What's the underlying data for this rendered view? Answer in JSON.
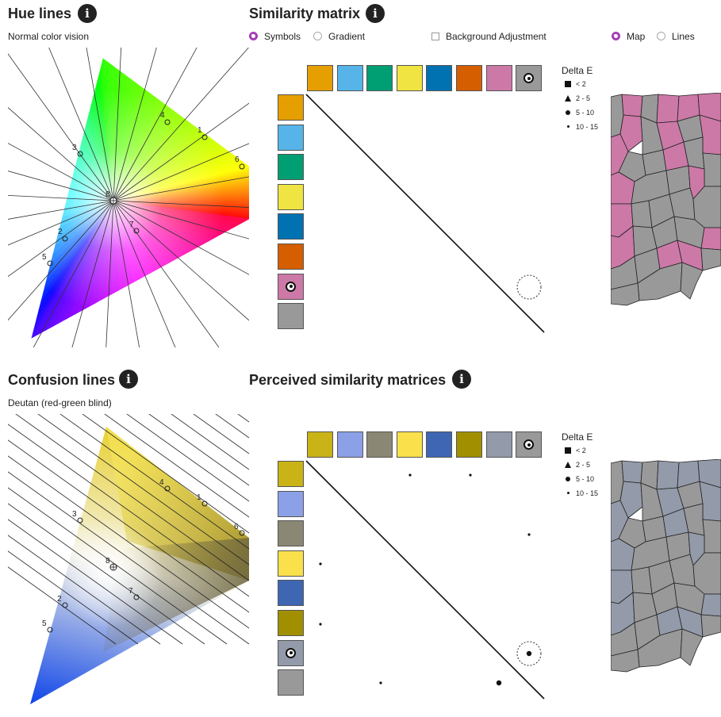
{
  "hue_panel": {
    "title": "Hue lines",
    "subtitle": "Normal color vision",
    "point_labels": [
      "1",
      "2",
      "3",
      "4",
      "5",
      "6",
      "7",
      "8"
    ]
  },
  "confusion_panel": {
    "title": "Confusion lines",
    "subtitle": "Deutan (red-green blind)"
  },
  "similarity": {
    "title": "Similarity matrix",
    "radio_symbols": "Symbols",
    "radio_gradient": "Gradient",
    "checkbox_bg": "Background Adjustment",
    "radio_map": "Map",
    "radio_lines": "Lines",
    "selected_display": "Symbols",
    "selected_view": "Map",
    "colors": [
      "#E69F00",
      "#56B4E9",
      "#009E73",
      "#F0E442",
      "#0072B2",
      "#D55E00",
      "#CC79A7",
      "#999999"
    ]
  },
  "perceived": {
    "title": "Perceived similarity matrices",
    "colors": [
      "#C9B317",
      "#8BA0E6",
      "#8A8774",
      "#FAE04B",
      "#3F66B3",
      "#A18F00",
      "#939AA9",
      "#999999"
    ]
  },
  "legend": {
    "title": "Delta E",
    "items": [
      "< 2",
      "2 - 5",
      "5 - 10",
      "10 - 15"
    ]
  },
  "map_colors": {
    "highlight": "#CC79A7",
    "base": "#999999",
    "perceived_highlight": "#939AA9"
  },
  "icons": {
    "info": "info-icon",
    "selected_swatch": "target-circle-icon"
  }
}
